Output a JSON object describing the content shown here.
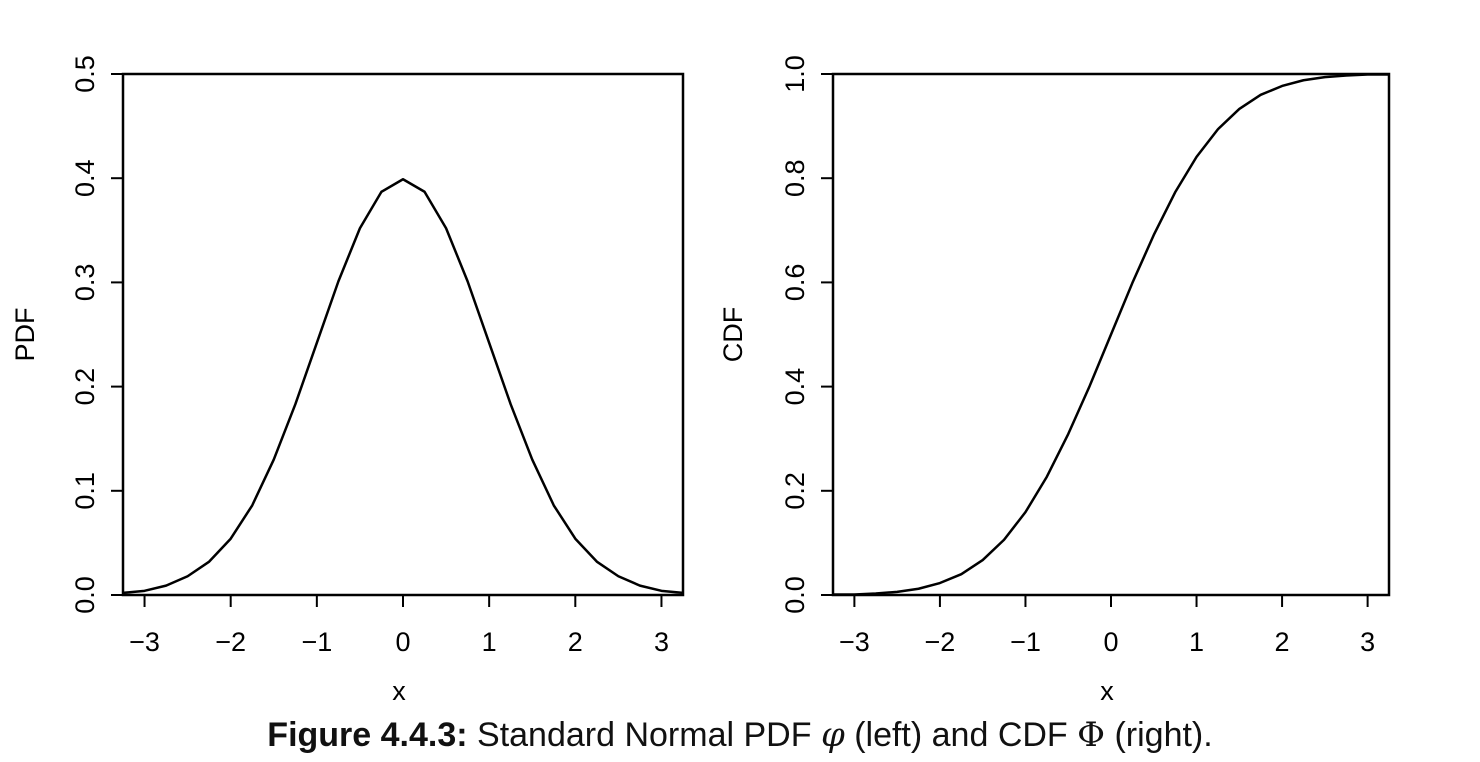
{
  "chart_data": [
    {
      "type": "line",
      "name": "pdf-panel",
      "title": "",
      "xlabel": "x",
      "ylabel": "PDF",
      "xlim": [
        -3.25,
        3.25
      ],
      "ylim": [
        0,
        0.5
      ],
      "xticks": [
        -3,
        -2,
        -1,
        0,
        1,
        2,
        3
      ],
      "xtick_labels": [
        "−3",
        "−2",
        "−1",
        "0",
        "1",
        "2",
        "3"
      ],
      "yticks": [
        0,
        0.1,
        0.2,
        0.3,
        0.4,
        0.5
      ],
      "ytick_labels": [
        "0.0",
        "0.1",
        "0.2",
        "0.3",
        "0.4",
        "0.5"
      ],
      "grid": false,
      "legend": "none",
      "series": [
        {
          "x": [
            -3.25,
            -3.0,
            -2.75,
            -2.5,
            -2.25,
            -2.0,
            -1.75,
            -1.5,
            -1.25,
            -1.0,
            -0.75,
            -0.5,
            -0.25,
            0.0,
            0.25,
            0.5,
            0.75,
            1.0,
            1.25,
            1.5,
            1.75,
            2.0,
            2.25,
            2.5,
            2.75,
            3.0,
            3.25
          ],
          "y": [
            0.002,
            0.004,
            0.009,
            0.018,
            0.032,
            0.054,
            0.086,
            0.13,
            0.183,
            0.242,
            0.301,
            0.352,
            0.387,
            0.399,
            0.387,
            0.352,
            0.301,
            0.242,
            0.183,
            0.13,
            0.086,
            0.054,
            0.032,
            0.018,
            0.009,
            0.004,
            0.002
          ]
        }
      ]
    },
    {
      "type": "line",
      "name": "cdf-panel",
      "title": "",
      "xlabel": "x",
      "ylabel": "CDF",
      "xlim": [
        -3.25,
        3.25
      ],
      "ylim": [
        0,
        1.0
      ],
      "xticks": [
        -3,
        -2,
        -1,
        0,
        1,
        2,
        3
      ],
      "xtick_labels": [
        "−3",
        "−2",
        "−1",
        "0",
        "1",
        "2",
        "3"
      ],
      "yticks": [
        0,
        0.2,
        0.4,
        0.6,
        0.8,
        1.0
      ],
      "ytick_labels": [
        "0.0",
        "0.2",
        "0.4",
        "0.6",
        "0.8",
        "1.0"
      ],
      "grid": false,
      "legend": "none",
      "series": [
        {
          "x": [
            -3.25,
            -3.0,
            -2.75,
            -2.5,
            -2.25,
            -2.0,
            -1.75,
            -1.5,
            -1.25,
            -1.0,
            -0.75,
            -0.5,
            -0.25,
            0.0,
            0.25,
            0.5,
            0.75,
            1.0,
            1.25,
            1.5,
            1.75,
            2.0,
            2.25,
            2.5,
            2.75,
            3.0,
            3.25
          ],
          "y": [
            0.001,
            0.001,
            0.003,
            0.006,
            0.012,
            0.023,
            0.04,
            0.067,
            0.106,
            0.159,
            0.227,
            0.309,
            0.401,
            0.5,
            0.599,
            0.691,
            0.773,
            0.841,
            0.894,
            0.933,
            0.96,
            0.977,
            0.988,
            0.994,
            0.997,
            0.999,
            0.999
          ]
        }
      ]
    }
  ],
  "caption": {
    "label": "Figure 4.4.3:",
    "text_before_phi": " Standard Normal PDF ",
    "phi_symbol": "φ",
    "text_middle": " (left) and CDF ",
    "Phi_symbol": "Φ",
    "text_after": " (right)."
  }
}
